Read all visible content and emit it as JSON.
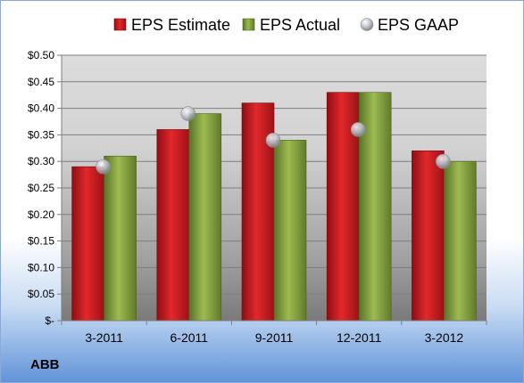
{
  "chart_data": {
    "type": "bar",
    "title": "",
    "xlabel": "",
    "ylabel": "",
    "company_label": "ABB",
    "categories": [
      "3-2011",
      "6-2011",
      "9-2011",
      "12-2011",
      "3-2012"
    ],
    "ylim": [
      0,
      0.5
    ],
    "yticks": [
      0,
      0.05,
      0.1,
      0.15,
      0.2,
      0.25,
      0.3,
      0.35,
      0.4,
      0.45,
      0.5
    ],
    "ytick_labels": [
      "$-",
      "$0.05",
      "$0.10",
      "$0.15",
      "$0.20",
      "$0.25",
      "$0.30",
      "$0.35",
      "$0.40",
      "$0.45",
      "$0.50"
    ],
    "grid": true,
    "legend_position": "top",
    "series": [
      {
        "name": "EPS Estimate",
        "kind": "bar",
        "color": "#c0181c",
        "values": [
          0.29,
          0.36,
          0.41,
          0.43,
          0.32
        ]
      },
      {
        "name": "EPS Actual",
        "kind": "bar",
        "color": "#7e9c3a",
        "values": [
          0.31,
          0.39,
          0.34,
          0.43,
          0.3
        ]
      },
      {
        "name": "EPS GAAP",
        "kind": "marker",
        "color": "#b8bcc6",
        "values": [
          0.29,
          0.39,
          0.34,
          0.36,
          0.3
        ]
      }
    ]
  }
}
